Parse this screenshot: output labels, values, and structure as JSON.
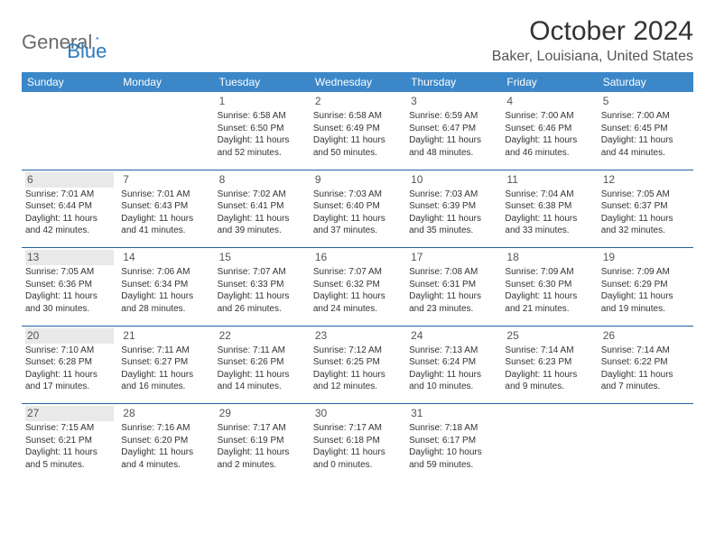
{
  "logo": {
    "part1": "General",
    "part2": "Blue"
  },
  "title": "October 2024",
  "location": "Baker, Louisiana, United States",
  "colors": {
    "header_bg": "#3b87c8",
    "header_text": "#ffffff",
    "rule": "#2264a0",
    "shade": "#e9e9e9",
    "logo_gray": "#6b6b6b",
    "logo_blue": "#2b7bbf"
  },
  "dow": [
    "Sunday",
    "Monday",
    "Tuesday",
    "Wednesday",
    "Thursday",
    "Friday",
    "Saturday"
  ],
  "shaded_column": 0,
  "weeks": [
    [
      null,
      null,
      {
        "n": "1",
        "sr": "6:58 AM",
        "ss": "6:50 PM",
        "dl": "11 hours and 52 minutes."
      },
      {
        "n": "2",
        "sr": "6:58 AM",
        "ss": "6:49 PM",
        "dl": "11 hours and 50 minutes."
      },
      {
        "n": "3",
        "sr": "6:59 AM",
        "ss": "6:47 PM",
        "dl": "11 hours and 48 minutes."
      },
      {
        "n": "4",
        "sr": "7:00 AM",
        "ss": "6:46 PM",
        "dl": "11 hours and 46 minutes."
      },
      {
        "n": "5",
        "sr": "7:00 AM",
        "ss": "6:45 PM",
        "dl": "11 hours and 44 minutes."
      }
    ],
    [
      {
        "n": "6",
        "sr": "7:01 AM",
        "ss": "6:44 PM",
        "dl": "11 hours and 42 minutes."
      },
      {
        "n": "7",
        "sr": "7:01 AM",
        "ss": "6:43 PM",
        "dl": "11 hours and 41 minutes."
      },
      {
        "n": "8",
        "sr": "7:02 AM",
        "ss": "6:41 PM",
        "dl": "11 hours and 39 minutes."
      },
      {
        "n": "9",
        "sr": "7:03 AM",
        "ss": "6:40 PM",
        "dl": "11 hours and 37 minutes."
      },
      {
        "n": "10",
        "sr": "7:03 AM",
        "ss": "6:39 PM",
        "dl": "11 hours and 35 minutes."
      },
      {
        "n": "11",
        "sr": "7:04 AM",
        "ss": "6:38 PM",
        "dl": "11 hours and 33 minutes."
      },
      {
        "n": "12",
        "sr": "7:05 AM",
        "ss": "6:37 PM",
        "dl": "11 hours and 32 minutes."
      }
    ],
    [
      {
        "n": "13",
        "sr": "7:05 AM",
        "ss": "6:36 PM",
        "dl": "11 hours and 30 minutes."
      },
      {
        "n": "14",
        "sr": "7:06 AM",
        "ss": "6:34 PM",
        "dl": "11 hours and 28 minutes."
      },
      {
        "n": "15",
        "sr": "7:07 AM",
        "ss": "6:33 PM",
        "dl": "11 hours and 26 minutes."
      },
      {
        "n": "16",
        "sr": "7:07 AM",
        "ss": "6:32 PM",
        "dl": "11 hours and 24 minutes."
      },
      {
        "n": "17",
        "sr": "7:08 AM",
        "ss": "6:31 PM",
        "dl": "11 hours and 23 minutes."
      },
      {
        "n": "18",
        "sr": "7:09 AM",
        "ss": "6:30 PM",
        "dl": "11 hours and 21 minutes."
      },
      {
        "n": "19",
        "sr": "7:09 AM",
        "ss": "6:29 PM",
        "dl": "11 hours and 19 minutes."
      }
    ],
    [
      {
        "n": "20",
        "sr": "7:10 AM",
        "ss": "6:28 PM",
        "dl": "11 hours and 17 minutes."
      },
      {
        "n": "21",
        "sr": "7:11 AM",
        "ss": "6:27 PM",
        "dl": "11 hours and 16 minutes."
      },
      {
        "n": "22",
        "sr": "7:11 AM",
        "ss": "6:26 PM",
        "dl": "11 hours and 14 minutes."
      },
      {
        "n": "23",
        "sr": "7:12 AM",
        "ss": "6:25 PM",
        "dl": "11 hours and 12 minutes."
      },
      {
        "n": "24",
        "sr": "7:13 AM",
        "ss": "6:24 PM",
        "dl": "11 hours and 10 minutes."
      },
      {
        "n": "25",
        "sr": "7:14 AM",
        "ss": "6:23 PM",
        "dl": "11 hours and 9 minutes."
      },
      {
        "n": "26",
        "sr": "7:14 AM",
        "ss": "6:22 PM",
        "dl": "11 hours and 7 minutes."
      }
    ],
    [
      {
        "n": "27",
        "sr": "7:15 AM",
        "ss": "6:21 PM",
        "dl": "11 hours and 5 minutes."
      },
      {
        "n": "28",
        "sr": "7:16 AM",
        "ss": "6:20 PM",
        "dl": "11 hours and 4 minutes."
      },
      {
        "n": "29",
        "sr": "7:17 AM",
        "ss": "6:19 PM",
        "dl": "11 hours and 2 minutes."
      },
      {
        "n": "30",
        "sr": "7:17 AM",
        "ss": "6:18 PM",
        "dl": "11 hours and 0 minutes."
      },
      {
        "n": "31",
        "sr": "7:18 AM",
        "ss": "6:17 PM",
        "dl": "10 hours and 59 minutes."
      },
      null,
      null
    ]
  ],
  "labels": {
    "sunrise": "Sunrise:",
    "sunset": "Sunset:",
    "daylight": "Daylight:"
  }
}
